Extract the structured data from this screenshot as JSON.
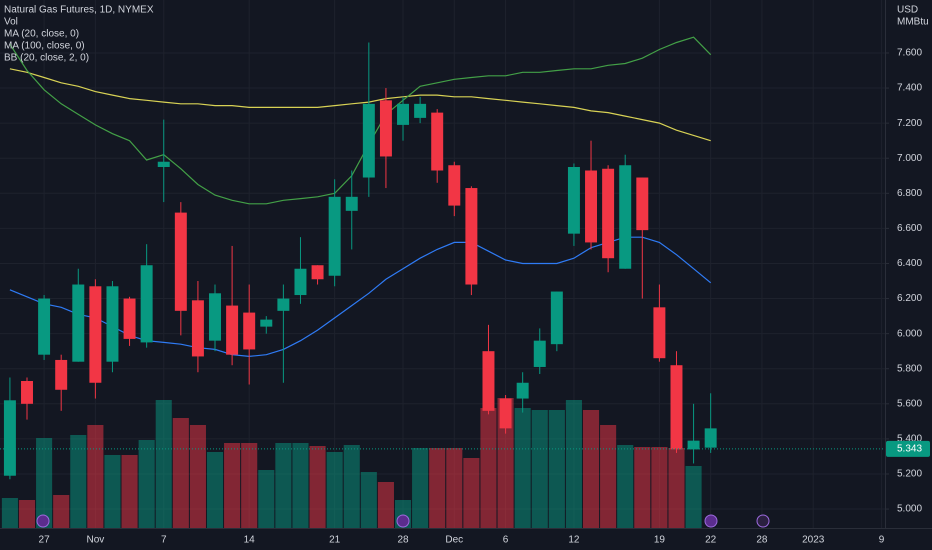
{
  "chart_data": {
    "type": "candlestick",
    "title": "Natural Gas Futures, 1D, NYMEX",
    "currency": "USD",
    "unit": "MMBtu",
    "up_color": "#089981",
    "down_color": "#f23645",
    "grid": true,
    "ylim": [
      4.892,
      7.902
    ],
    "yticks": [
      {
        "value": 5.0,
        "label": "5.000"
      },
      {
        "value": 5.2,
        "label": "5.200"
      },
      {
        "value": 5.4,
        "label": "5.400"
      },
      {
        "value": 5.6,
        "label": "5.600"
      },
      {
        "value": 5.8,
        "label": "5.800"
      },
      {
        "value": 6.0,
        "label": "6.000"
      },
      {
        "value": 6.2,
        "label": "6.200"
      },
      {
        "value": 6.4,
        "label": "6.400"
      },
      {
        "value": 6.6,
        "label": "6.600"
      },
      {
        "value": 6.8,
        "label": "6.800"
      },
      {
        "value": 7.0,
        "label": "7.000"
      },
      {
        "value": 7.2,
        "label": "7.200"
      },
      {
        "value": 7.4,
        "label": "7.400"
      },
      {
        "value": 7.6,
        "label": "7.600"
      }
    ],
    "xlim": [
      -0.58,
      51.2
    ],
    "xticks": [
      {
        "value": 2,
        "label": "27"
      },
      {
        "value": 5,
        "label": "Nov"
      },
      {
        "value": 9,
        "label": "7"
      },
      {
        "value": 14,
        "label": "14"
      },
      {
        "value": 19,
        "label": "21"
      },
      {
        "value": 23,
        "label": "28"
      },
      {
        "value": 26,
        "label": "Dec"
      },
      {
        "value": 29,
        "label": "6"
      },
      {
        "value": 33,
        "label": "12"
      },
      {
        "value": 38,
        "label": "19"
      },
      {
        "value": 41,
        "label": "22"
      },
      {
        "value": 44,
        "label": "28"
      },
      {
        "value": 47,
        "label": "2023"
      },
      {
        "value": 51,
        "label": "9"
      }
    ],
    "open": [
      5.19,
      5.73,
      5.88,
      5.85,
      5.84,
      6.27,
      5.84,
      6.2,
      5.95,
      6.95,
      6.69,
      6.19,
      5.96,
      6.16,
      6.12,
      6.04,
      6.13,
      6.22,
      6.39,
      6.33,
      6.7,
      6.89,
      7.33,
      7.19,
      7.23,
      7.26,
      6.96,
      6.83,
      5.9,
      5.63,
      5.63,
      5.81,
      5.94,
      6.57,
      6.93,
      6.94,
      6.37,
      6.89,
      6.15,
      5.82,
      5.34,
      5.35
    ],
    "high": [
      5.75,
      5.75,
      6.22,
      5.88,
      6.37,
      6.31,
      6.3,
      6.21,
      6.51,
      7.22,
      6.75,
      6.3,
      6.28,
      6.5,
      6.28,
      6.1,
      6.28,
      6.55,
      6.39,
      6.88,
      6.93,
      7.66,
      7.4,
      7.35,
      7.35,
      7.28,
      6.98,
      6.84,
      6.05,
      5.65,
      5.78,
      6.03,
      6.24,
      6.97,
      7.1,
      6.96,
      7.02,
      6.89,
      6.28,
      5.9,
      5.6,
      5.66
    ],
    "low": [
      5.17,
      5.51,
      5.85,
      5.56,
      5.84,
      5.63,
      5.78,
      5.93,
      5.92,
      6.75,
      5.99,
      5.78,
      5.9,
      5.82,
      5.71,
      6.0,
      5.72,
      6.17,
      6.28,
      6.27,
      6.48,
      6.78,
      6.83,
      7.1,
      7.2,
      6.86,
      6.67,
      6.22,
      5.54,
      5.43,
      5.55,
      5.77,
      5.9,
      6.5,
      6.48,
      6.35,
      6.37,
      6.2,
      5.84,
      5.32,
      5.26,
      5.32
    ],
    "close": [
      5.62,
      5.6,
      6.2,
      5.68,
      6.28,
      5.72,
      6.27,
      5.97,
      6.39,
      6.98,
      6.13,
      5.87,
      6.23,
      5.88,
      5.91,
      6.08,
      6.2,
      6.37,
      6.31,
      6.78,
      6.78,
      7.31,
      7.01,
      7.31,
      7.31,
      6.93,
      6.73,
      6.28,
      5.56,
      5.46,
      5.72,
      5.96,
      6.24,
      6.95,
      6.52,
      6.43,
      6.96,
      6.59,
      5.86,
      5.34,
      5.39,
      5.46
    ],
    "last_price": 5.343,
    "volume": {
      "name": "Vol",
      "vlim": [
        0,
        528
      ],
      "values": [
        30,
        28,
        90,
        33,
        93,
        103,
        73,
        73,
        88,
        128,
        110,
        103,
        76,
        85,
        85,
        58,
        85,
        85,
        82,
        76,
        83,
        56,
        46,
        28,
        80,
        80,
        80,
        70,
        120,
        130,
        120,
        118,
        118,
        128,
        118,
        103,
        83,
        81,
        81,
        80,
        62,
        null
      ]
    },
    "overlays": [
      {
        "name": "MA (20, close, 0)",
        "color": "#2f7bf5",
        "values": [
          6.25,
          6.21,
          6.17,
          6.15,
          6.11,
          6.09,
          6.04,
          5.99,
          5.96,
          5.95,
          5.94,
          5.92,
          5.91,
          5.88,
          5.87,
          5.88,
          5.91,
          5.96,
          6.02,
          6.09,
          6.16,
          6.23,
          6.31,
          6.37,
          6.43,
          6.48,
          6.52,
          6.52,
          6.47,
          6.42,
          6.4,
          6.4,
          6.4,
          6.43,
          6.49,
          6.52,
          6.55,
          6.55,
          6.52,
          6.45,
          6.37,
          6.29
        ]
      },
      {
        "name": "MA (100, close, 0)",
        "color": "#d8d255",
        "values": [
          7.51,
          7.49,
          7.46,
          7.43,
          7.41,
          7.38,
          7.36,
          7.34,
          7.33,
          7.32,
          7.31,
          7.31,
          7.3,
          7.3,
          7.29,
          7.29,
          7.29,
          7.29,
          7.29,
          7.3,
          7.31,
          7.32,
          7.34,
          7.35,
          7.36,
          7.36,
          7.35,
          7.35,
          7.34,
          7.33,
          7.32,
          7.31,
          7.3,
          7.29,
          7.27,
          7.26,
          7.24,
          7.22,
          7.2,
          7.16,
          7.13,
          7.1
        ]
      },
      {
        "name": "BB (20, close, 2, 0)",
        "color": "#43a047",
        "values": [
          7.65,
          7.5,
          7.39,
          7.31,
          7.25,
          7.19,
          7.14,
          7.1,
          6.99,
          7.02,
          6.94,
          6.85,
          6.79,
          6.76,
          6.74,
          6.74,
          6.76,
          6.77,
          6.78,
          6.8,
          6.9,
          7.08,
          7.25,
          7.33,
          7.41,
          7.43,
          7.45,
          7.46,
          7.47,
          7.47,
          7.49,
          7.49,
          7.5,
          7.51,
          7.51,
          7.53,
          7.54,
          7.57,
          7.62,
          7.66,
          7.69,
          7.59
        ]
      }
    ]
  }
}
